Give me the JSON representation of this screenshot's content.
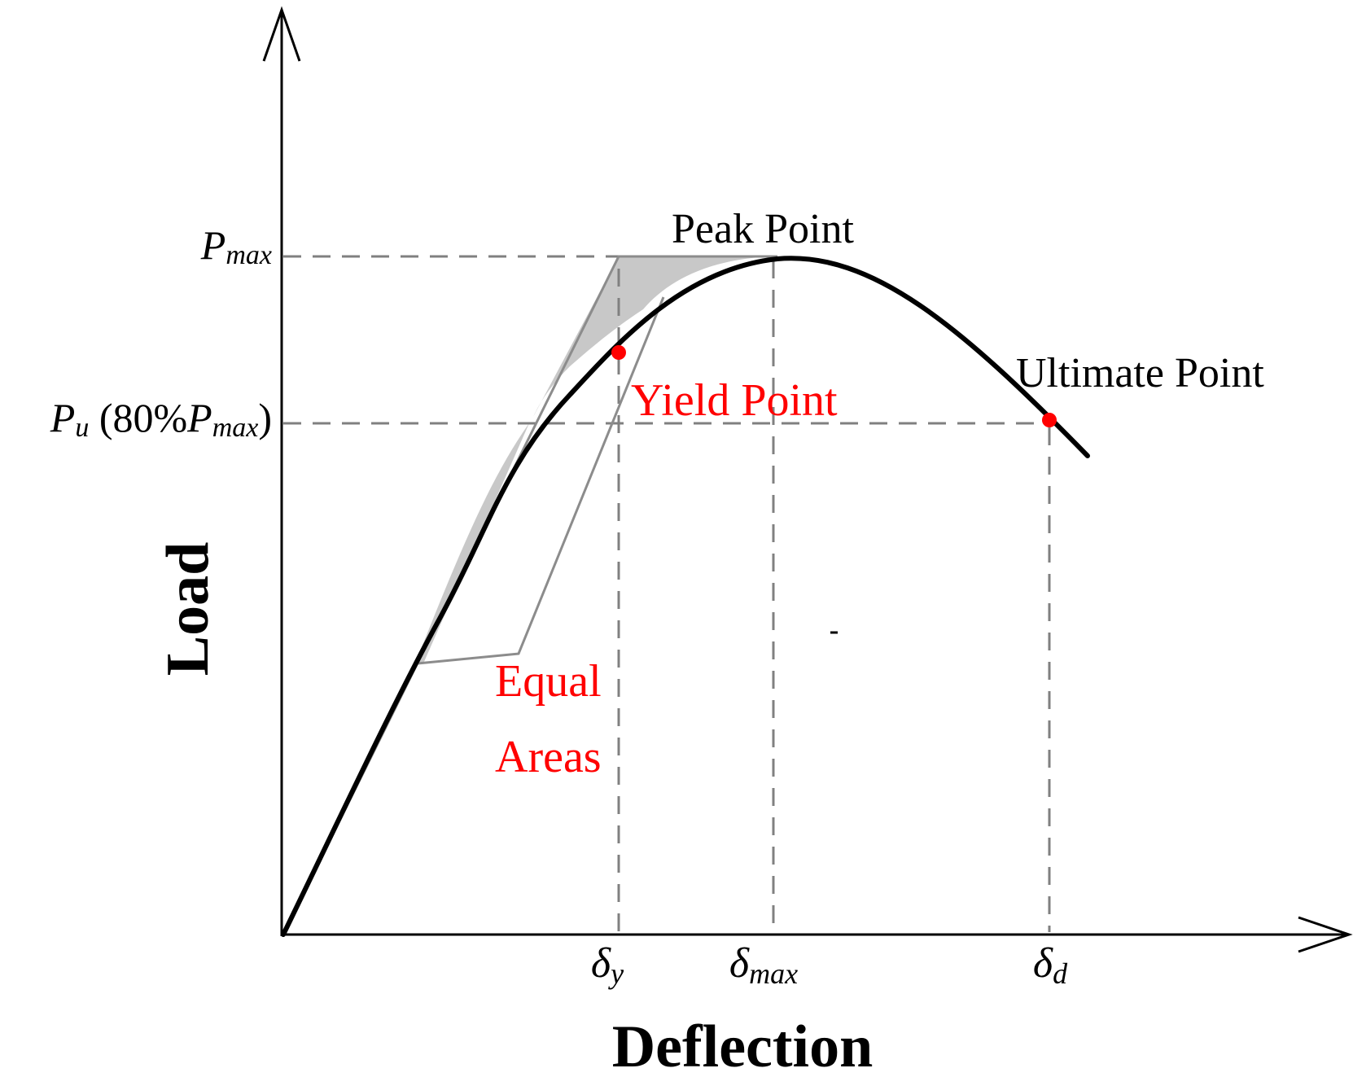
{
  "axes": {
    "x_title": "Deflection",
    "y_title": "Load"
  },
  "y_labels": {
    "pmax": {
      "main": "P",
      "sub": "max"
    },
    "pu": {
      "main": "P",
      "sub": "u",
      "paren_open": " (80%",
      "inner_main": "P",
      "inner_sub": "max",
      "paren_close": ")"
    }
  },
  "x_labels": {
    "dy": {
      "main": "δ",
      "sub": "y"
    },
    "dmax": {
      "main": "δ",
      "sub": "max"
    },
    "dd": {
      "main": "δ",
      "sub": "d"
    }
  },
  "annotations": {
    "peak": "Peak Point",
    "ultimate": "Ultimate Point",
    "yield": "Yield Point",
    "equal_line1": "Equal",
    "equal_line2": "Areas"
  },
  "colors": {
    "curve": "#000000",
    "axes": "#000000",
    "dashed": "#808080",
    "construction": "#8c8c8c",
    "shaded_fill": "#c8c8c8",
    "highlight": "#ff0000",
    "text": "#000000"
  }
}
